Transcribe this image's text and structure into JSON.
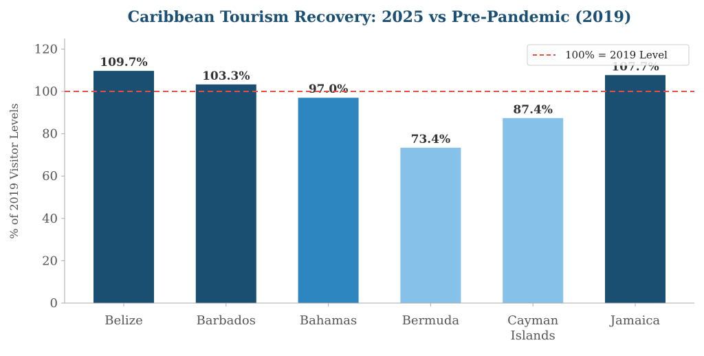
{
  "chart_data": {
    "type": "bar",
    "title": "Caribbean Tourism Recovery: 2025 vs Pre-Pandemic (2019)",
    "xlabel": "",
    "ylabel": "% of 2019 Visitor Levels",
    "ylim": [
      0,
      125
    ],
    "yticks": [
      0,
      20,
      40,
      60,
      80,
      100,
      120
    ],
    "categories": [
      "Belize",
      "Barbados",
      "Bahamas",
      "Bermuda",
      "Cayman\nIslands",
      "Jamaica"
    ],
    "values": [
      109.7,
      103.3,
      97.0,
      73.4,
      87.4,
      107.7
    ],
    "data_labels": [
      "109.7%",
      "103.3%",
      "97.0%",
      "73.4%",
      "87.4%",
      "107.7%"
    ],
    "bar_colors": [
      "#1b4f72",
      "#1b4f72",
      "#2e86c1",
      "#85c1e9",
      "#85c1e9",
      "#1b4f72"
    ],
    "reference_line": {
      "value": 100,
      "label": "100% = 2019 Level",
      "color": "#e74c3c",
      "style": "dashed"
    },
    "legend_position": "top-right",
    "title_color": "#1b4f72",
    "grid": false
  }
}
